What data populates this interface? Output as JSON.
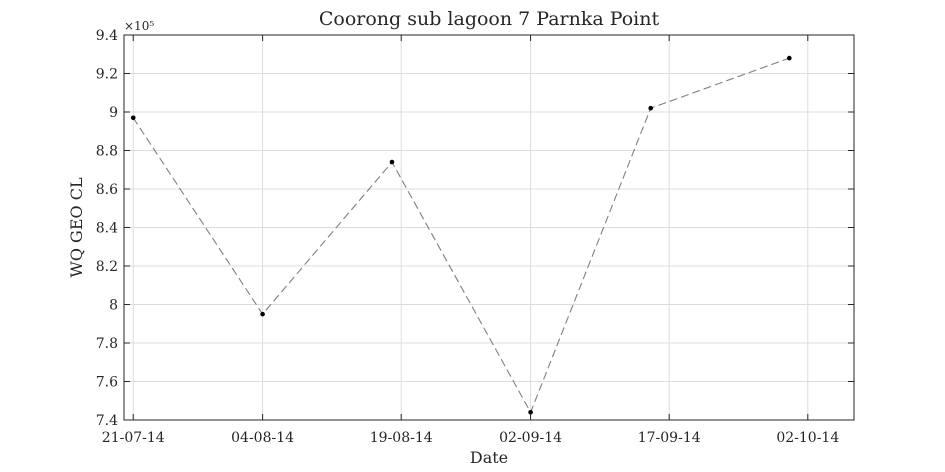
{
  "chart_data": {
    "type": "line",
    "title": "Coorong sub lagoon 7 Parnka Point",
    "xlabel": "Date",
    "ylabel": "WQ GEO CL",
    "exponent_label": "×10⁵",
    "x_ticks": [
      "21-07-14",
      "04-08-14",
      "19-08-14",
      "02-09-14",
      "17-09-14",
      "02-10-14"
    ],
    "x_tick_dates": [
      "2014-07-21",
      "2014-08-04",
      "2014-08-19",
      "2014-09-02",
      "2014-09-17",
      "2014-10-02"
    ],
    "x_range": [
      "2014-07-20",
      "2014-10-07"
    ],
    "y_ticks": [
      "7.4",
      "7.6",
      "7.8",
      "8",
      "8.2",
      "8.4",
      "8.6",
      "8.8",
      "9",
      "9.2",
      "9.4"
    ],
    "y_tick_values": [
      7.4,
      7.6,
      7.8,
      8.0,
      8.2,
      8.4,
      8.6,
      8.8,
      9.0,
      9.2,
      9.4
    ],
    "ylim": [
      7.4,
      9.4
    ],
    "grid": true,
    "series": [
      {
        "x": [
          "2014-07-21",
          "2014-08-04",
          "2014-08-18",
          "2014-09-02",
          "2014-09-15",
          "2014-09-30"
        ],
        "y": [
          8.97,
          7.95,
          8.74,
          7.44,
          9.02,
          9.28
        ],
        "color": "#808080",
        "marker_color": "#000000"
      }
    ]
  }
}
